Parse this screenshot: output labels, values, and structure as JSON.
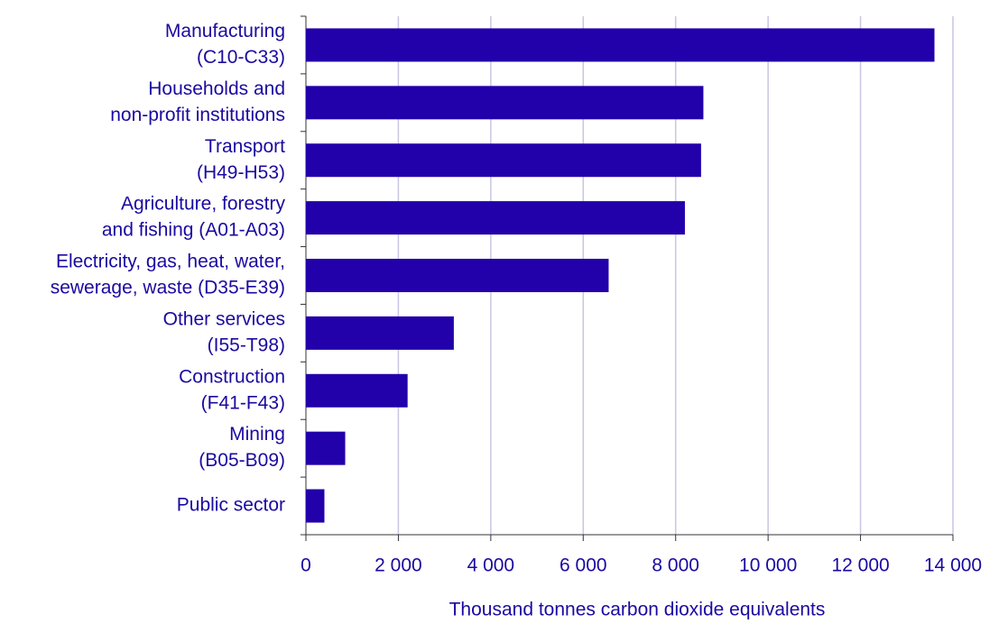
{
  "chart_data": {
    "type": "bar",
    "orientation": "horizontal",
    "x_label": "Thousand tonnes carbon dioxide equivalents",
    "categories": [
      [
        "Manufacturing",
        "(C10-C33)"
      ],
      [
        "Households and",
        "non-profit institutions"
      ],
      [
        "Transport",
        "(H49-H53)"
      ],
      [
        "Agriculture, forestry",
        "and fishing (A01-A03)"
      ],
      [
        "Electricity, gas, heat, water,",
        "sewerage, waste (D35-E39)"
      ],
      [
        "Other services",
        "(I55-T98)"
      ],
      [
        "Construction",
        "(F41-F43)"
      ],
      [
        "Mining",
        "(B05-B09)"
      ],
      [
        "Public sector"
      ]
    ],
    "values": [
      13600,
      8600,
      8550,
      8200,
      6550,
      3200,
      2200,
      850,
      400
    ],
    "color": "#2200aa",
    "xlim": [
      0,
      14000
    ],
    "xticks": [
      0,
      {
        "value": 2000,
        "label": "2 000"
      },
      {
        "value": 4000,
        "label": "4 000"
      },
      {
        "value": 6000,
        "label": "6 000"
      },
      {
        "value": 8000,
        "label": "8 000"
      },
      {
        "value": 10000,
        "label": "10 000"
      },
      {
        "value": 12000,
        "label": "12 000"
      },
      {
        "value": 14000,
        "label": "14 000"
      }
    ],
    "grid": true
  }
}
